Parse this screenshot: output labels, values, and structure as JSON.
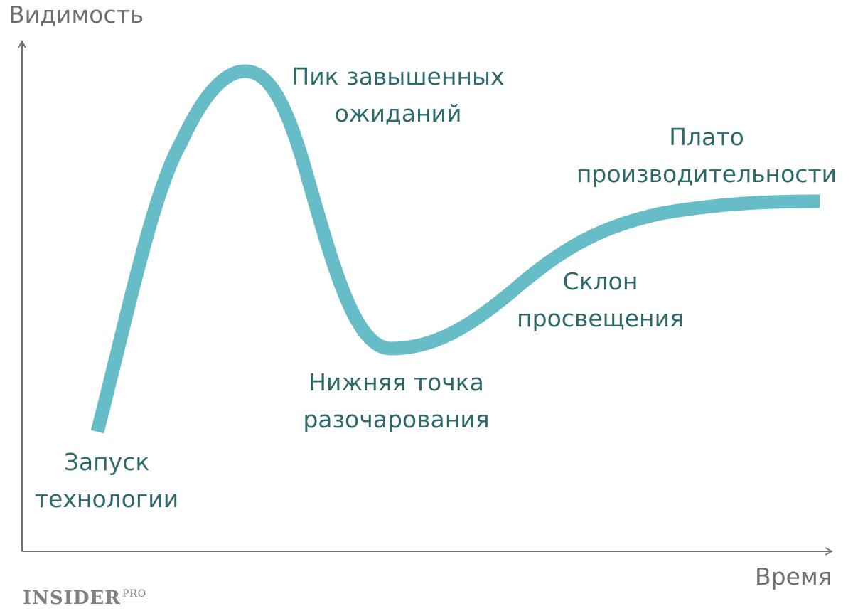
{
  "axes": {
    "y_label": "Видимость",
    "x_label": "Время"
  },
  "phases": {
    "trigger": [
      "Запуск",
      "технологии"
    ],
    "peak": [
      "Пик завышенных",
      "ожиданий"
    ],
    "trough": [
      "Нижняя точка",
      "разочарования"
    ],
    "slope": [
      "Склон",
      "просвещения"
    ],
    "plateau": [
      "Плато",
      "производительности"
    ]
  },
  "logo": {
    "main": "INSIDER",
    "suffix": "PRO"
  },
  "colors": {
    "curve": "#66bcc7",
    "phase_text": "#2f6a6a",
    "axis": "#707070",
    "axis_text": "#6f6f6f",
    "logo": "#808080"
  }
}
